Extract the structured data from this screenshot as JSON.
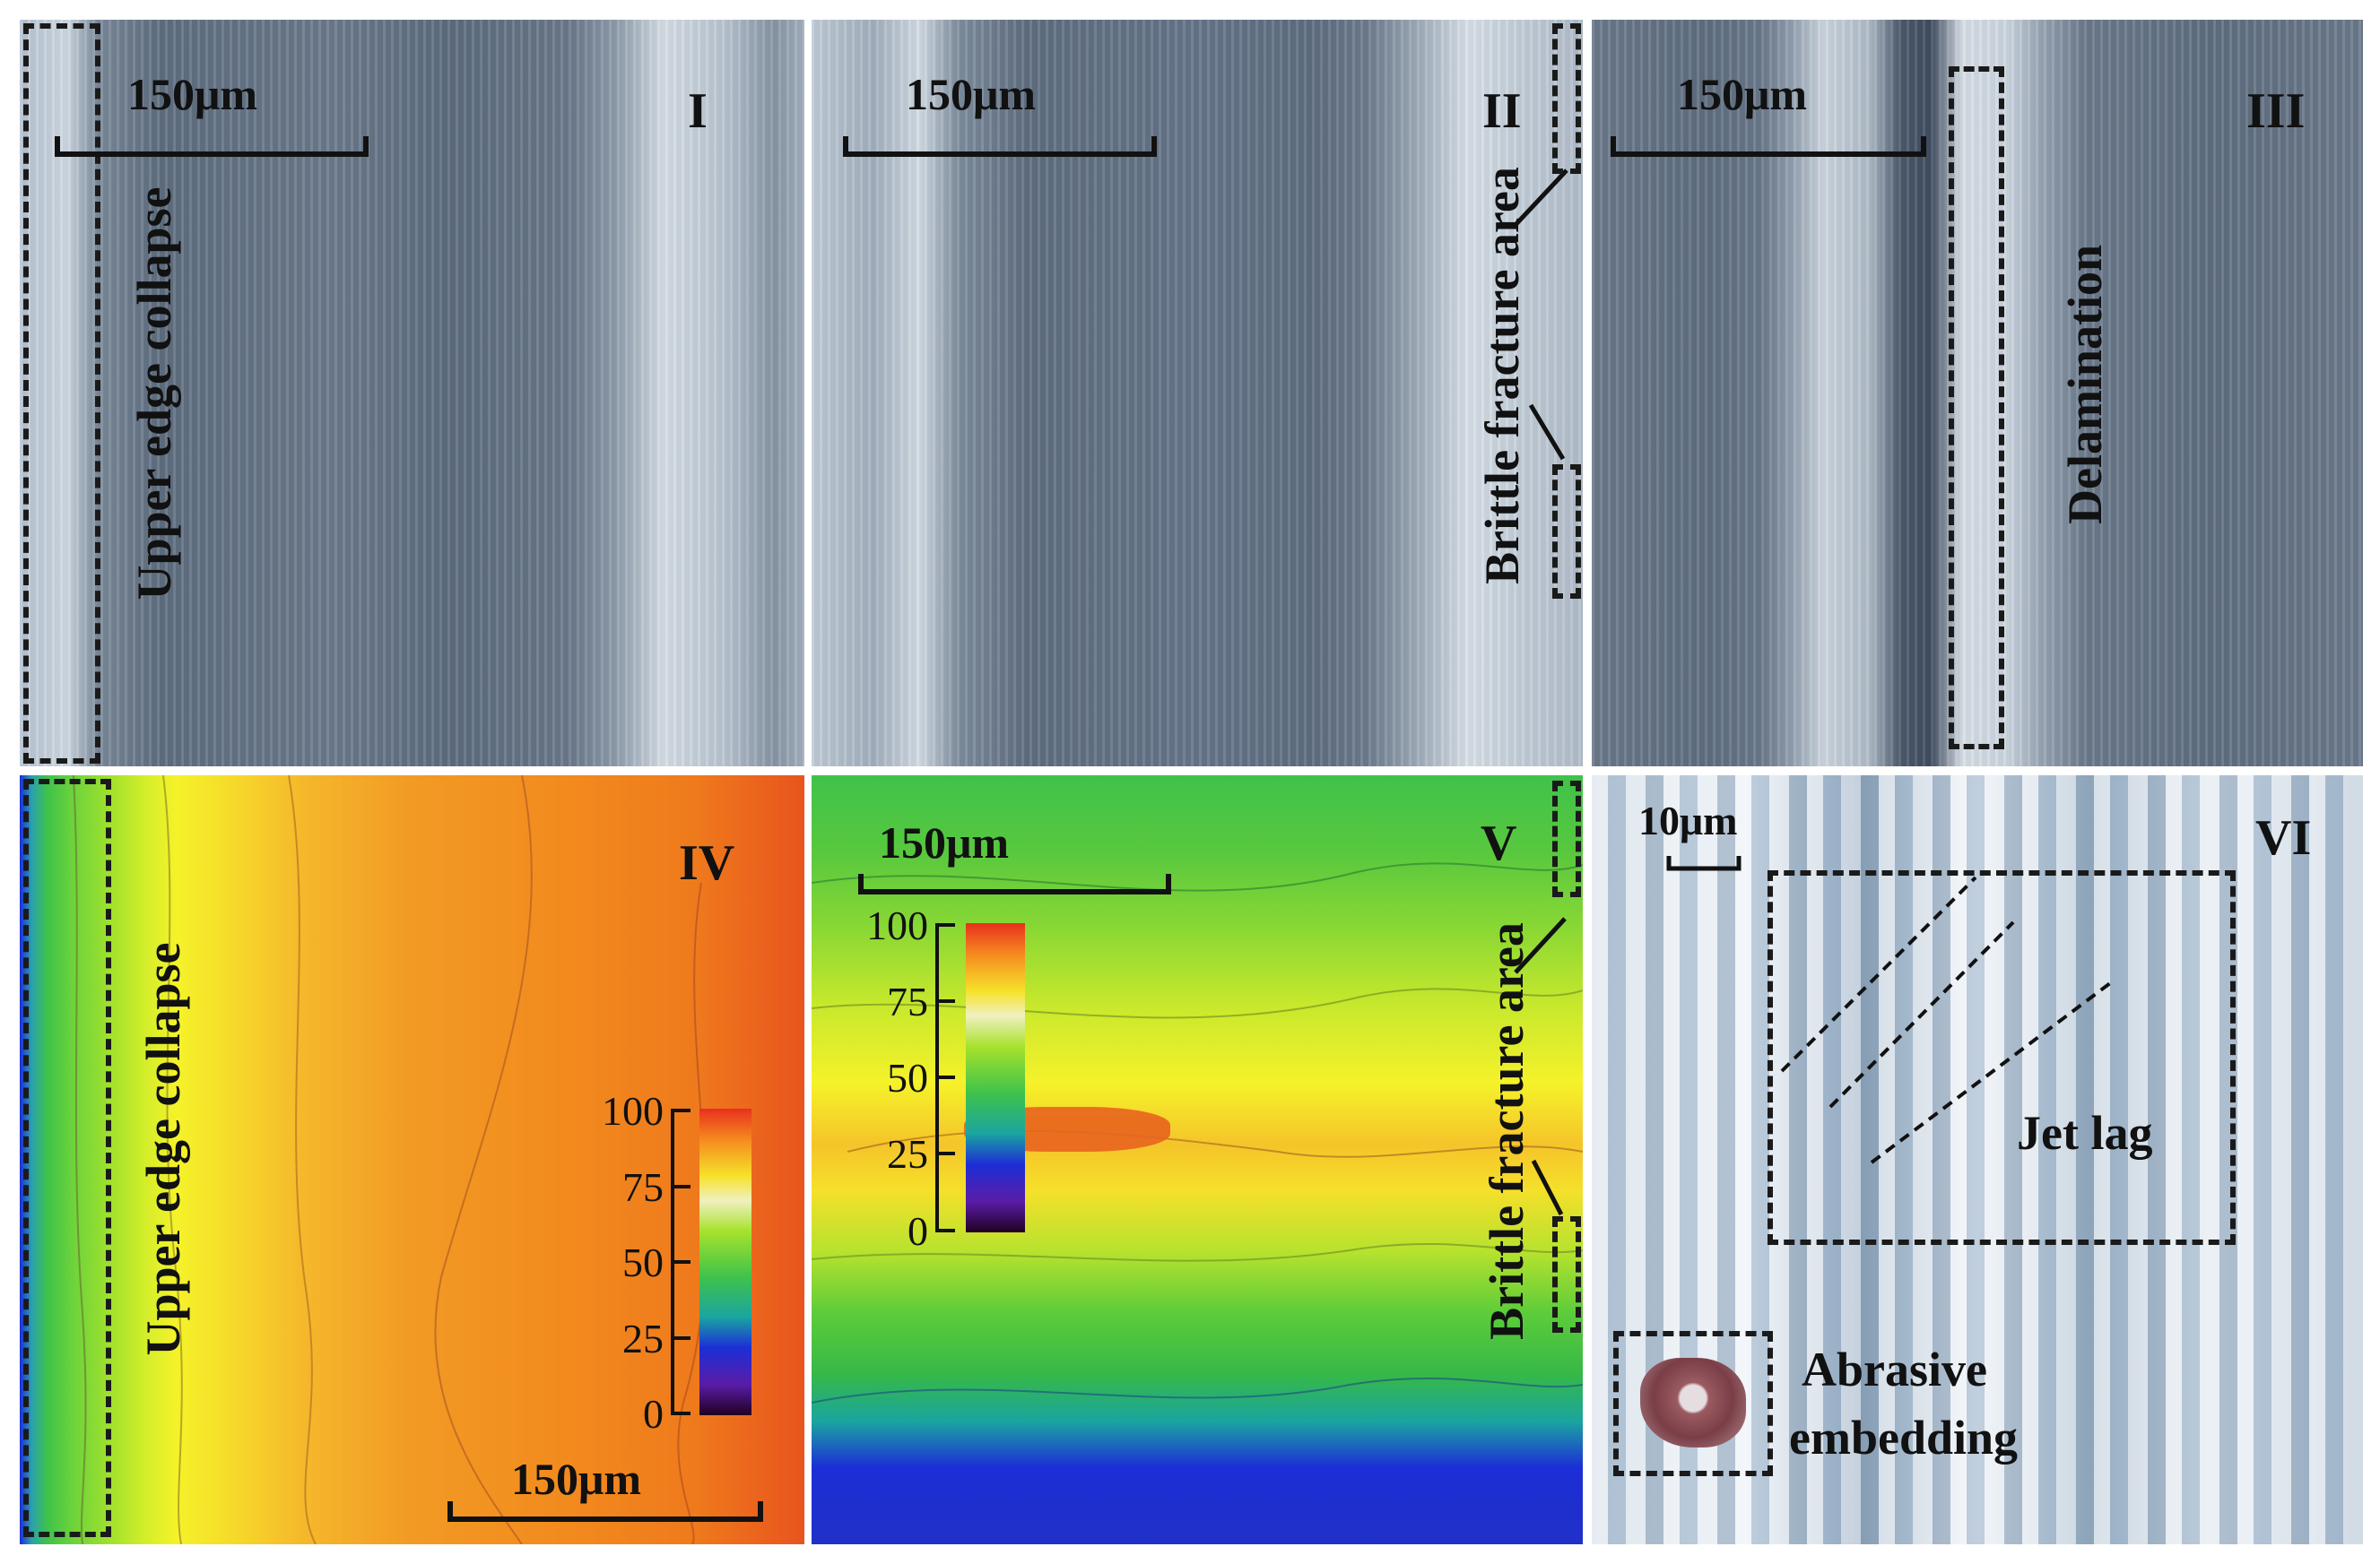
{
  "panels": {
    "p1": {
      "numeral": "I",
      "scale": "150μm",
      "annotation": "Upper edge collapse"
    },
    "p2": {
      "numeral": "II",
      "scale": "150μm",
      "annotation": "Brittle fracture area"
    },
    "p3": {
      "numeral": "III",
      "scale": "150μm",
      "annotation": "Delamination"
    },
    "p4": {
      "numeral": "IV",
      "scale": "150μm",
      "annotation": "Upper edge collapse",
      "colorbar_ticks": [
        "100",
        "75",
        "50",
        "25",
        "0"
      ]
    },
    "p5": {
      "numeral": "V",
      "scale": "150μm",
      "annotation": "Brittle fracture area",
      "colorbar_ticks": [
        "100",
        "75",
        "50",
        "25",
        "0"
      ]
    },
    "p6": {
      "numeral": "VI",
      "scale": "10μm",
      "annotation_jet": "Jet lag",
      "annotation_abrasive_1": "Abrasive",
      "annotation_abrasive_2": "embedding"
    }
  },
  "colors": {
    "micrograph_dark": "#5f6e80",
    "micrograph_light": "#c9d3dd",
    "map_red": "#e8541e",
    "map_orange": "#f28a1e",
    "map_yellow": "#f5f22a",
    "map_green": "#3fc24a",
    "map_blue": "#1c2ed6",
    "annotation": "#111111"
  }
}
